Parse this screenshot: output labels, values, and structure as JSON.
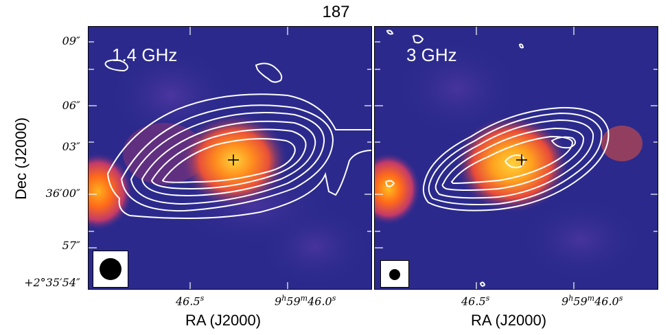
{
  "figure_title": "187",
  "left_panel": {
    "label": "1.4 GHz"
  },
  "right_panel": {
    "label": "3 GHz"
  },
  "y_ticks": [
    "09″",
    "06″",
    "03″",
    "36′00″",
    "57″",
    "+2°35′54″"
  ],
  "x_ticks": {
    "tick_a": "46.5",
    "tick_a_sup": "s",
    "tick_b_h": "9",
    "tick_b_m": "59",
    "tick_b_s": "46.0"
  },
  "x_axis_label": "RA (J2000)",
  "y_axis_label": "Dec (J2000)",
  "colors": {
    "background": "#2b2a8c",
    "contour": "#ffffff",
    "peak_core": "#ffd23a",
    "peak_mid": "#ff6a1a",
    "peak_edge": "#d23a7a"
  }
}
